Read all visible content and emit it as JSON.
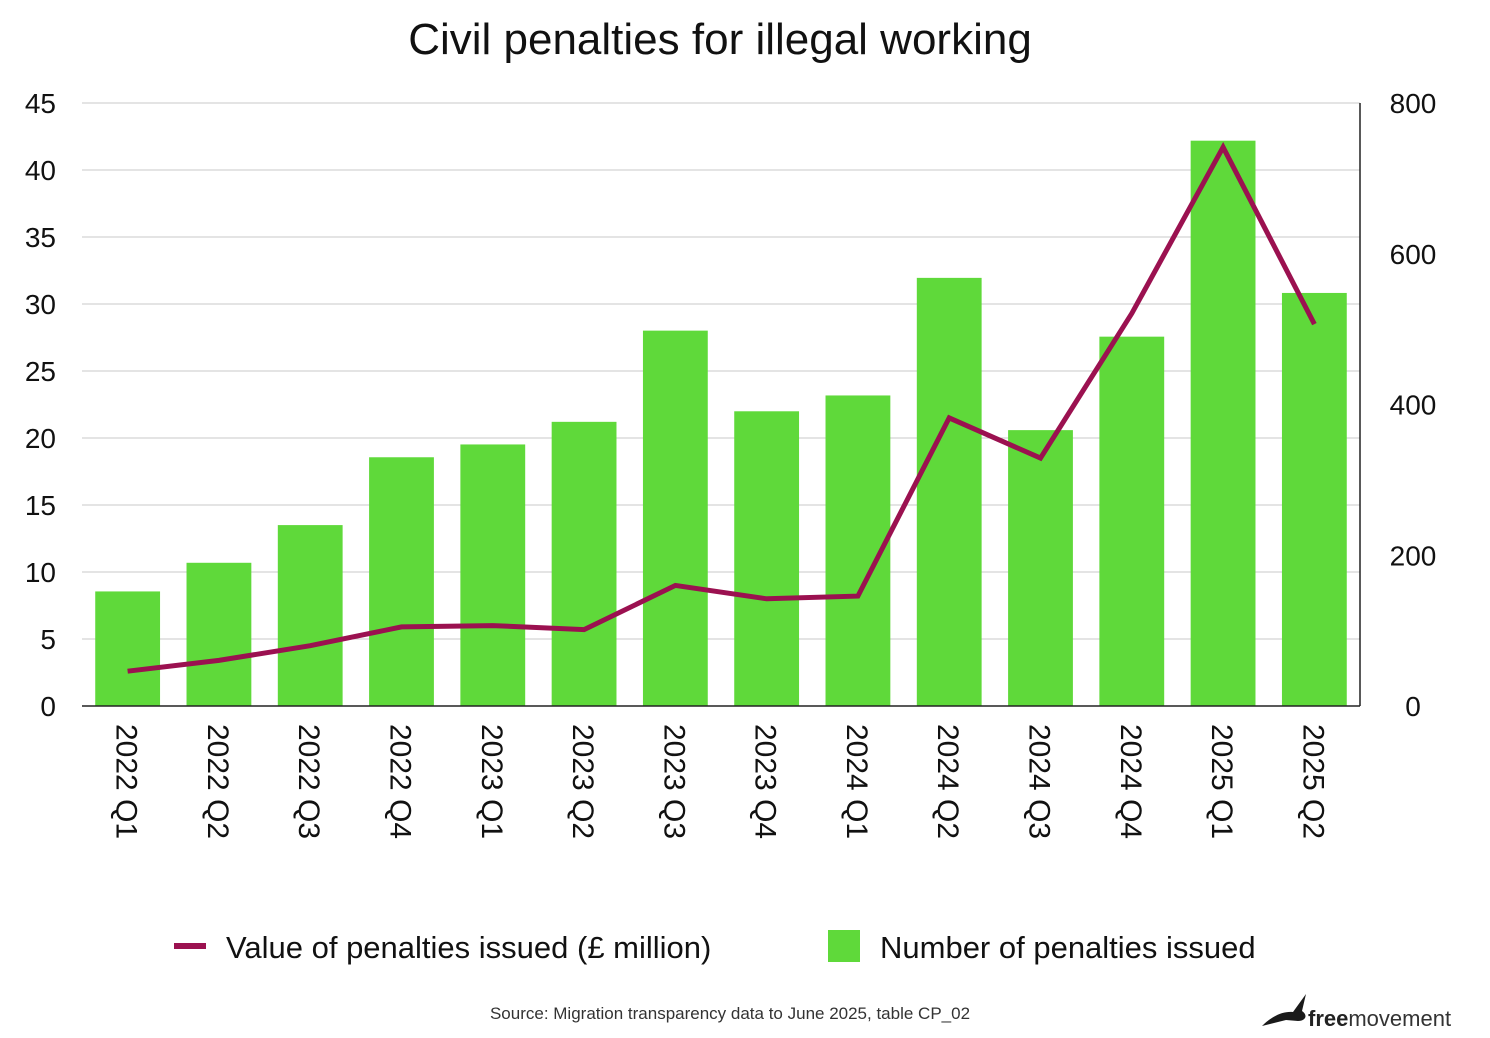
{
  "chart_data": {
    "type": "bar",
    "title": "Civil penalties for illegal working",
    "categories": [
      "2022 Q1",
      "2022 Q2",
      "2022 Q3",
      "2022 Q4",
      "2023 Q1",
      "2023 Q2",
      "2023 Q3",
      "2023 Q4",
      "2024 Q1",
      "2024 Q2",
      "2024 Q3",
      "2024 Q4",
      "2025 Q1",
      "2025 Q2"
    ],
    "y_left": {
      "min": 0,
      "max": 45,
      "ticks": [
        "0",
        "5",
        "10",
        "15",
        "20",
        "25",
        "30",
        "35",
        "40",
        "45"
      ]
    },
    "y_right": {
      "min": 0,
      "max": 800,
      "ticks": [
        "0",
        "200",
        "400",
        "600",
        "800"
      ]
    },
    "grid": true,
    "legend_position": "bottom",
    "series": [
      {
        "name": "Value of penalties issued (£ million)",
        "type": "line",
        "axis": "left",
        "color": "#9b1150",
        "values": [
          2.6,
          3.4,
          4.5,
          5.9,
          6.0,
          5.7,
          9.0,
          8.0,
          8.2,
          21.5,
          18.5,
          29.3,
          41.7,
          28.5
        ]
      },
      {
        "name": "Number of penalties issued",
        "type": "bar",
        "axis": "right",
        "color": "#5fd93a",
        "values": [
          152,
          190,
          240,
          330,
          347,
          377,
          498,
          391,
          412,
          568,
          366,
          490,
          750,
          548
        ]
      }
    ]
  },
  "source": "Source: Migration transparency data to June 2025, table CP_02",
  "brand": {
    "bold": "free",
    "regular": "movement",
    "icon": "bird-icon"
  }
}
